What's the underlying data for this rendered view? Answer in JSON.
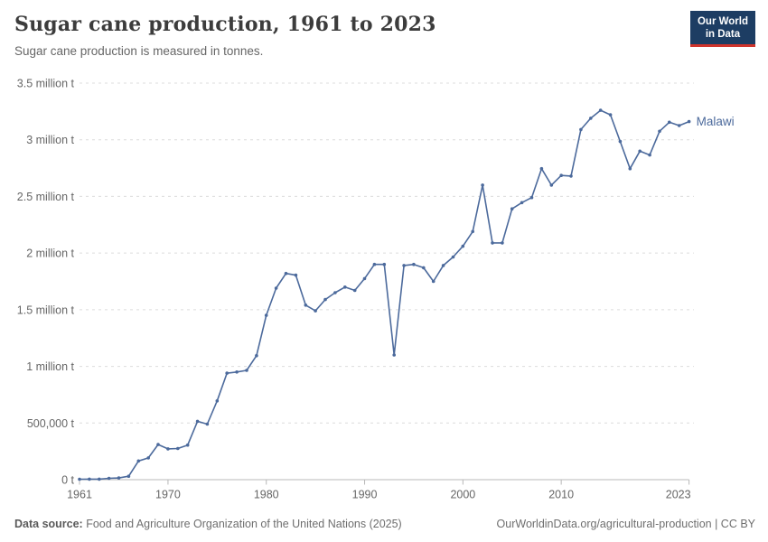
{
  "header": {
    "title": "Sugar cane production, 1961 to 2023",
    "subtitle": "Sugar cane production is measured in tonnes.",
    "logo_line1": "Our World",
    "logo_line2": "in Data"
  },
  "footer": {
    "source_label": "Data source:",
    "source_text": " Food and Agriculture Organization of the United Nations (2025)",
    "credit": "OurWorldinData.org/agricultural-production | CC BY"
  },
  "colors": {
    "line": "#4c6a9c",
    "entity_label": "#4c6a9c",
    "grid": "#dcdcdc",
    "axis": "#b8b8b8",
    "tick_text": "#666666",
    "logo_bg": "#1d3d63",
    "logo_accent": "#d0342c"
  },
  "chart_data": {
    "type": "line",
    "title": "Sugar cane production, 1961 to 2023",
    "subtitle": "Sugar cane production is measured in tonnes.",
    "xlabel": "",
    "ylabel": "tonnes",
    "xlim": [
      1961,
      2023
    ],
    "ylim": [
      0,
      3500000
    ],
    "grid": "horizontal-dashed",
    "legend_position": "end-of-line-label",
    "xticks": [
      1961,
      1970,
      1980,
      1990,
      2000,
      2010,
      2023
    ],
    "yticks": [
      {
        "value": 0,
        "label": "0 t"
      },
      {
        "value": 500000,
        "label": "500,000 t"
      },
      {
        "value": 1000000,
        "label": "1 million t"
      },
      {
        "value": 1500000,
        "label": "1.5 million t"
      },
      {
        "value": 2000000,
        "label": "2 million t"
      },
      {
        "value": 2500000,
        "label": "2.5 million t"
      },
      {
        "value": 3000000,
        "label": "3 million t"
      },
      {
        "value": 3500000,
        "label": "3.5 million t"
      }
    ],
    "x": [
      1961,
      1962,
      1963,
      1964,
      1965,
      1966,
      1967,
      1968,
      1969,
      1970,
      1971,
      1972,
      1973,
      1974,
      1975,
      1976,
      1977,
      1978,
      1979,
      1980,
      1981,
      1982,
      1983,
      1984,
      1985,
      1986,
      1987,
      1988,
      1989,
      1990,
      1991,
      1992,
      1993,
      1994,
      1995,
      1996,
      1997,
      1998,
      1999,
      2000,
      2001,
      2002,
      2003,
      2004,
      2005,
      2006,
      2007,
      2008,
      2009,
      2010,
      2011,
      2012,
      2013,
      2014,
      2015,
      2016,
      2017,
      2018,
      2019,
      2020,
      2021,
      2022,
      2023
    ],
    "series": [
      {
        "name": "Malawi",
        "values": [
          4000,
          4500,
          5000,
          12000,
          15000,
          30000,
          165000,
          192000,
          310000,
          272000,
          275000,
          305000,
          515000,
          490000,
          695000,
          940000,
          950000,
          965000,
          1095000,
          1450000,
          1690000,
          1820000,
          1805000,
          1540000,
          1490000,
          1590000,
          1650000,
          1700000,
          1670000,
          1775000,
          1900000,
          1900000,
          1100000,
          1890000,
          1900000,
          1870000,
          1750000,
          1890000,
          1965000,
          2060000,
          2190000,
          2600000,
          2090000,
          2090000,
          2390000,
          2445000,
          2490000,
          2745000,
          2600000,
          2685000,
          2680000,
          3090000,
          3190000,
          3260000,
          3220000,
          2985000,
          2745000,
          2900000,
          2865000,
          3075000,
          3155000,
          3125000,
          3160000
        ]
      }
    ]
  }
}
